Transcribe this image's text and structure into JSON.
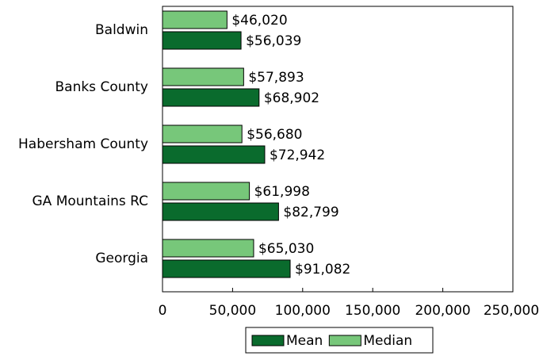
{
  "chart_data": {
    "type": "barh",
    "categories": [
      "Baldwin",
      "Banks County",
      "Habersham County",
      "GA Mountains RC",
      "Georgia"
    ],
    "series": [
      {
        "name": "Mean",
        "color": "#0a6b2d",
        "values": [
          56039,
          68902,
          72942,
          82799,
          91082
        ],
        "value_labels": [
          "$56,039",
          "$68,902",
          "$72,942",
          "$82,799",
          "$91,082"
        ]
      },
      {
        "name": "Median",
        "color": "#77c77a",
        "values": [
          46020,
          57893,
          56680,
          61998,
          65030
        ],
        "value_labels": [
          "$46,020",
          "$57,893",
          "$56,680",
          "$61,998",
          "$65,030"
        ]
      }
    ],
    "xlim": [
      0,
      250000
    ],
    "xticks": [
      0,
      {
        "value": 50000,
        "label": "50,000"
      },
      {
        "value": 100000,
        "label": "100,000"
      },
      {
        "value": 150000,
        "label": "150,000"
      },
      {
        "value": 200000,
        "label": "200,000"
      },
      {
        "value": 250000,
        "label": "250,000"
      }
    ],
    "legend": "bottom"
  }
}
